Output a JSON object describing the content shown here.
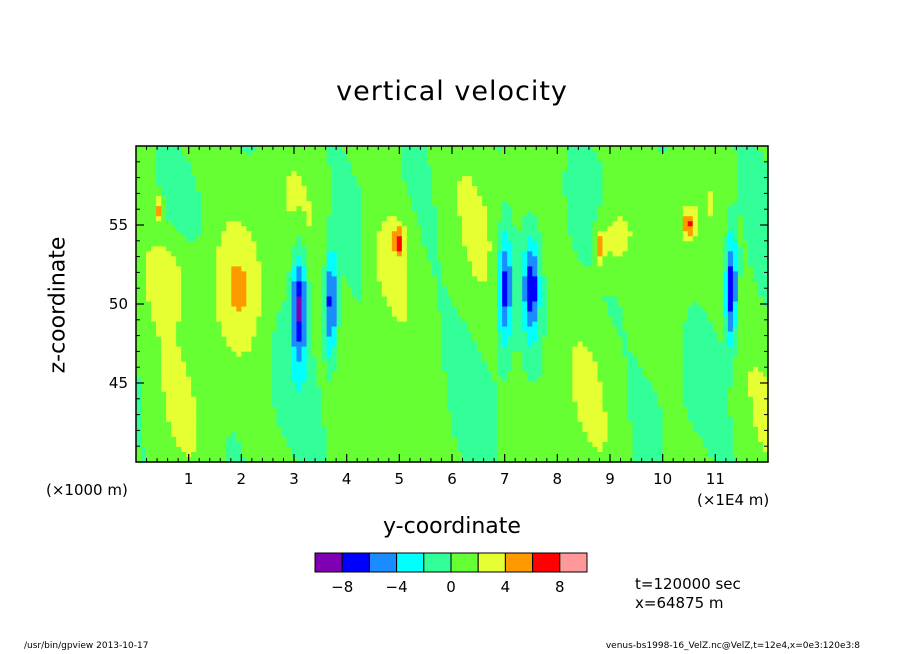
{
  "chart_data": {
    "type": "heatmap",
    "title": "vertical velocity",
    "xlabel": "y-coordinate",
    "ylabel": "z-coordinate",
    "x_unit_left": "(×1000 m)",
    "x_unit_right": "(×1E4 m)",
    "xlim": [
      0,
      120000
    ],
    "ylim": [
      40000,
      60000
    ],
    "x_ticks": [
      {
        "value": 10000,
        "label": "1"
      },
      {
        "value": 20000,
        "label": "2"
      },
      {
        "value": 30000,
        "label": "3"
      },
      {
        "value": 40000,
        "label": "4"
      },
      {
        "value": 50000,
        "label": "5"
      },
      {
        "value": 60000,
        "label": "6"
      },
      {
        "value": 70000,
        "label": "7"
      },
      {
        "value": 80000,
        "label": "8"
      },
      {
        "value": 90000,
        "label": "9"
      },
      {
        "value": 100000,
        "label": "10"
      },
      {
        "value": 110000,
        "label": "11"
      }
    ],
    "y_ticks": [
      {
        "value": 45000,
        "label": "45"
      },
      {
        "value": 50000,
        "label": "50"
      },
      {
        "value": 55000,
        "label": "55"
      }
    ],
    "colorbar": {
      "levels": [
        -10,
        -8,
        -6,
        -4,
        -2,
        0,
        2,
        4,
        6,
        8,
        10
      ],
      "colors": [
        "#7f00b2",
        "#0000ff",
        "#1a8cff",
        "#00ffff",
        "#33ff99",
        "#66ff33",
        "#e6ff33",
        "#ff9900",
        "#ff0000",
        "#ff9999"
      ],
      "labels": [
        {
          "value": -8,
          "label": "−8"
        },
        {
          "value": -4,
          "label": "−4"
        },
        {
          "value": 0,
          "label": "0"
        },
        {
          "value": 4,
          "label": "4"
        },
        {
          "value": 8,
          "label": "8"
        }
      ]
    },
    "features": [
      {
        "kind": "down",
        "y": 31000,
        "z": 50000,
        "ry": 1500,
        "rz": 3500,
        "w": -9
      },
      {
        "kind": "down",
        "y": 37000,
        "z": 50000,
        "ry": 1200,
        "rz": 3500,
        "w": -8
      },
      {
        "kind": "down",
        "y": 70000,
        "z": 51000,
        "ry": 1500,
        "rz": 3500,
        "w": -8
      },
      {
        "kind": "down",
        "y": 75000,
        "z": 51000,
        "ry": 1500,
        "rz": 3000,
        "w": -8
      },
      {
        "kind": "down",
        "y": 113000,
        "z": 51000,
        "ry": 1200,
        "rz": 3500,
        "w": -9
      },
      {
        "kind": "up",
        "y": 7000,
        "z": 52000,
        "ry": 5000,
        "rz": 3000,
        "w": 3
      },
      {
        "kind": "up",
        "y": 19000,
        "z": 51000,
        "ry": 5000,
        "rz": 4000,
        "w": 3
      },
      {
        "kind": "up",
        "y": 48000,
        "z": 53000,
        "ry": 4500,
        "rz": 3500,
        "w": 3
      },
      {
        "kind": "up",
        "y": 50000,
        "z": 54000,
        "ry": 1000,
        "rz": 800,
        "w": 5
      },
      {
        "kind": "up",
        "y": 90000,
        "z": 54000,
        "ry": 3500,
        "rz": 2500,
        "w": 3
      },
      {
        "kind": "up",
        "y": 88000,
        "z": 53500,
        "ry": 800,
        "rz": 900,
        "w": 5
      },
      {
        "kind": "up",
        "y": 105000,
        "z": 55000,
        "ry": 1200,
        "rz": 900,
        "w": 5
      },
      {
        "kind": "up",
        "y": 4500,
        "z": 56000,
        "ry": 700,
        "rz": 800,
        "w": 5
      }
    ],
    "grid": false
  },
  "info": {
    "time": "t=120000 sec",
    "xpos": "x=64875 m"
  },
  "footer": {
    "left": "/usr/bin/gpview  2013-10-17",
    "right": "venus-bs1998-16_VelZ.nc@VelZ,t=12e4,x=0e3:120e3:8"
  }
}
